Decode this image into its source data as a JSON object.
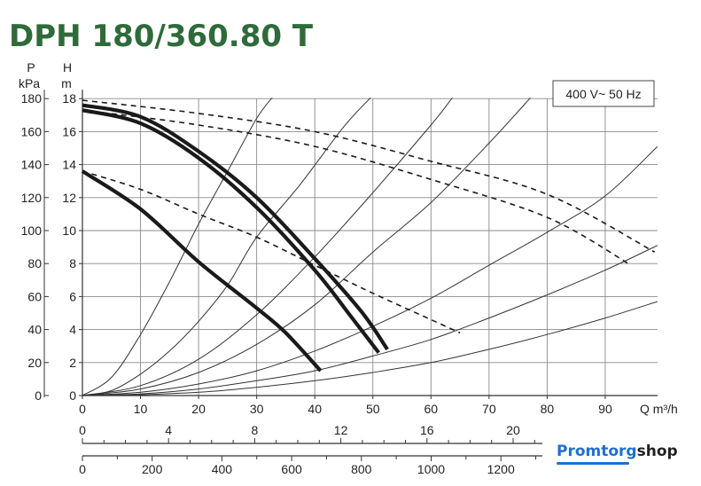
{
  "chart_data": {
    "type": "line",
    "title": "DPH 180/360.80 T",
    "annotation": "400 V~ 50 Hz",
    "left_axis_labels": {
      "pressure_unit_top": "P",
      "pressure_unit_bottom": "kPa",
      "head_unit_top": "H",
      "head_unit_bottom": "m"
    },
    "x_axis_label": "Q m³/h",
    "grid": true,
    "xlim": [
      0,
      99
    ],
    "ylim_head": [
      0,
      18
    ],
    "ylim_pressure": [
      0,
      180
    ],
    "x_ticks_m3h": [
      "0",
      "10",
      "20",
      "30",
      "40",
      "50",
      "60",
      "70",
      "80",
      "90"
    ],
    "x_ticks_secondary_1": [
      "0",
      "4",
      "8",
      "12",
      "16",
      "20"
    ],
    "x_ticks_secondary_2": [
      "0",
      "200",
      "400",
      "600",
      "800",
      "1000",
      "1200"
    ],
    "y_ticks_head": [
      "0",
      "2",
      "4",
      "6",
      "8",
      "10",
      "12",
      "14",
      "16",
      "18"
    ],
    "y_ticks_pressure": [
      "0",
      "20",
      "40",
      "60",
      "80",
      "100",
      "120",
      "140",
      "160",
      "180"
    ],
    "series": [
      {
        "style": "solid",
        "x": [
          0,
          10,
          20,
          30,
          35,
          41
        ],
        "y": [
          13.6,
          11.3,
          8.1,
          5.3,
          3.8,
          1.5
        ]
      },
      {
        "style": "solid",
        "x": [
          0,
          10,
          20,
          30,
          40,
          46,
          51
        ],
        "y": [
          17.3,
          16.5,
          14.4,
          11.4,
          7.6,
          4.9,
          2.6
        ]
      },
      {
        "style": "solid",
        "x": [
          0,
          10,
          20,
          30,
          40,
          48,
          52.5
        ],
        "y": [
          17.6,
          16.9,
          14.8,
          12.0,
          8.3,
          5.1,
          2.8
        ]
      },
      {
        "style": "dashed",
        "x": [
          0,
          10,
          20,
          30,
          40,
          50,
          60,
          65
        ],
        "y": [
          13.6,
          12.5,
          11.0,
          9.6,
          7.9,
          6.2,
          4.6,
          3.8
        ]
      },
      {
        "style": "dashed",
        "x": [
          0,
          20,
          40,
          60,
          80,
          94
        ],
        "y": [
          17.3,
          16.4,
          15.1,
          13.1,
          10.8,
          8.0
        ]
      },
      {
        "style": "dashed",
        "x": [
          0,
          20,
          40,
          60,
          80,
          98.5
        ],
        "y": [
          17.9,
          17.1,
          16.0,
          14.2,
          12.2,
          8.7
        ]
      }
    ],
    "system_curves": [
      {
        "x": [
          0,
          5,
          10,
          15,
          20,
          25,
          30,
          37.5,
          45,
          50
        ],
        "y": [
          0,
          0.3,
          1.3,
          2.7,
          4.5,
          6.7,
          9.6,
          12.8,
          16.3,
          18.2
        ]
      },
      {
        "x": [
          0,
          10,
          20,
          30,
          40,
          50,
          60,
          70,
          77.5
        ],
        "y": [
          0,
          0.4,
          1.4,
          3.1,
          5.5,
          8.7,
          11.7,
          15.3,
          18.2
        ]
      },
      {
        "x": [
          0,
          10,
          20,
          30,
          40,
          50,
          60,
          70,
          80,
          90,
          99
        ],
        "y": [
          0,
          0.2,
          0.7,
          1.5,
          2.7,
          4.2,
          5.9,
          7.9,
          9.9,
          12.1,
          15.1
        ]
      },
      {
        "x": [
          0,
          10,
          20,
          30,
          40,
          50,
          60,
          70,
          80,
          90,
          99
        ],
        "y": [
          0,
          0.1,
          0.4,
          0.9,
          1.5,
          2.4,
          3.4,
          4.7,
          6.1,
          7.6,
          9.1
        ]
      },
      {
        "x": [
          0,
          10,
          20,
          30,
          40,
          50,
          60,
          70,
          80,
          90,
          99
        ],
        "y": [
          0,
          0.05,
          0.2,
          0.5,
          0.9,
          1.4,
          2.0,
          2.8,
          3.7,
          4.7,
          5.7
        ]
      },
      {
        "x": [
          0,
          5,
          10,
          15,
          20,
          25,
          30,
          33
        ],
        "y": [
          0,
          1.1,
          3.7,
          6.9,
          10.4,
          13.6,
          16.8,
          18.2
        ]
      },
      {
        "x": [
          0,
          10,
          20,
          30,
          40,
          50,
          60,
          64
        ],
        "y": [
          0,
          0.6,
          2.2,
          4.9,
          8.4,
          12.3,
          16.4,
          18.2
        ]
      }
    ]
  },
  "watermark": {
    "part1": "Promtorg",
    "part2": "shop"
  }
}
